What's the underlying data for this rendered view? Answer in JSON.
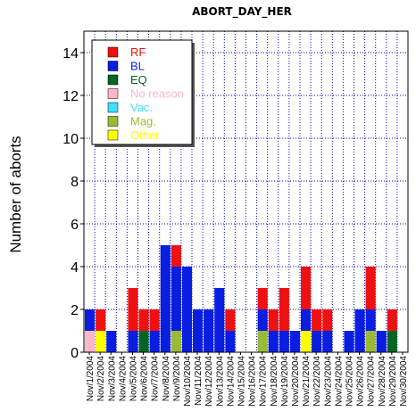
{
  "chart_data": {
    "type": "bar",
    "stacked": true,
    "title": "ABORT_DAY_HER",
    "xlabel": "",
    "ylabel": "Number of aborts",
    "ylim": [
      0,
      15
    ],
    "yticks": [
      0,
      2,
      4,
      6,
      8,
      10,
      12,
      14
    ],
    "grid": true,
    "legend_position": "top-left",
    "categories": [
      "Nov/1/2004",
      "Nov/2/2004",
      "Nov/3/2004",
      "Nov/4/2004",
      "Nov/5/2004",
      "Nov/6/2004",
      "Nov/7/2004",
      "Nov/8/2004",
      "Nov/9/2004",
      "Nov/10/2004",
      "Nov/11/2004",
      "Nov/12/2004",
      "Nov/13/2004",
      "Nov/14/2004",
      "Nov/15/2004",
      "Nov/16/2004",
      "Nov/17/2004",
      "Nov/18/2004",
      "Nov/19/2004",
      "Nov/20/2004",
      "Nov/21/2004",
      "Nov/22/2004",
      "Nov/23/2004",
      "Nov/24/2004",
      "Nov/25/2004",
      "Nov/26/2004",
      "Nov/27/2004",
      "Nov/28/2004",
      "Nov/29/2004",
      "Nov/30/2004"
    ],
    "series": [
      {
        "name": "No reason",
        "color": "#ffb6c8",
        "values": [
          1,
          0,
          0,
          0,
          0,
          0,
          0,
          0,
          0,
          0,
          0,
          0,
          0,
          0,
          0,
          0,
          0,
          0,
          0,
          0,
          0,
          0,
          0,
          0,
          0,
          0,
          0,
          0,
          0,
          0
        ]
      },
      {
        "name": "Vac.",
        "color": "#40e0ff",
        "values": [
          0,
          0,
          0,
          0,
          0,
          0,
          0,
          0,
          0,
          0,
          0,
          0,
          0,
          0,
          0,
          0,
          0,
          0,
          0,
          0,
          0,
          0,
          0,
          0,
          0,
          0,
          0,
          0,
          0,
          0
        ]
      },
      {
        "name": "Mag.",
        "color": "#99bb33",
        "values": [
          0,
          0,
          0,
          0,
          0,
          0,
          0,
          0,
          1,
          0,
          0,
          0,
          0,
          0,
          0,
          0,
          1,
          0,
          0,
          0,
          0,
          0,
          0,
          0,
          0,
          0,
          1,
          0,
          0,
          0
        ]
      },
      {
        "name": "Other",
        "color": "#ffff00",
        "values": [
          0,
          1,
          0,
          0,
          0,
          0,
          0,
          0,
          0,
          0,
          0,
          0,
          0,
          0,
          0,
          0,
          0,
          0,
          0,
          0,
          1,
          0,
          0,
          0,
          0,
          0,
          0,
          0,
          0,
          0
        ]
      },
      {
        "name": "EQ",
        "color": "#006622",
        "values": [
          0,
          0,
          0,
          0,
          0,
          1,
          0,
          0,
          0,
          0,
          0,
          0,
          0,
          0,
          0,
          0,
          0,
          0,
          0,
          0,
          0,
          0,
          0,
          0,
          0,
          0,
          0,
          0,
          1,
          0
        ]
      },
      {
        "name": "BL",
        "color": "#0a1ee0",
        "values": [
          1,
          0,
          1,
          0,
          1,
          0,
          1,
          5,
          3,
          4,
          2,
          2,
          3,
          1,
          0,
          0,
          1,
          1,
          1,
          1,
          1,
          1,
          1,
          0,
          1,
          2,
          1,
          1,
          0,
          0
        ]
      },
      {
        "name": "RF",
        "color": "#ee1111",
        "values": [
          0,
          1,
          0,
          0,
          2,
          1,
          1,
          0,
          1,
          0,
          0,
          0,
          0,
          1,
          0,
          0,
          1,
          1,
          2,
          0,
          2,
          1,
          1,
          0,
          0,
          0,
          2,
          0,
          1,
          0
        ]
      }
    ],
    "legend": [
      {
        "name": "RF",
        "color": "#ee1111"
      },
      {
        "name": "BL",
        "color": "#0a1ee0"
      },
      {
        "name": "EQ",
        "color": "#006622"
      },
      {
        "name": "No reason",
        "color": "#ffb6c8"
      },
      {
        "name": "Vac.",
        "color": "#40e0ff"
      },
      {
        "name": "Mag.",
        "color": "#99bb33"
      },
      {
        "name": "Other",
        "color": "#ffff00"
      }
    ],
    "grid_color": "#0000cc"
  }
}
